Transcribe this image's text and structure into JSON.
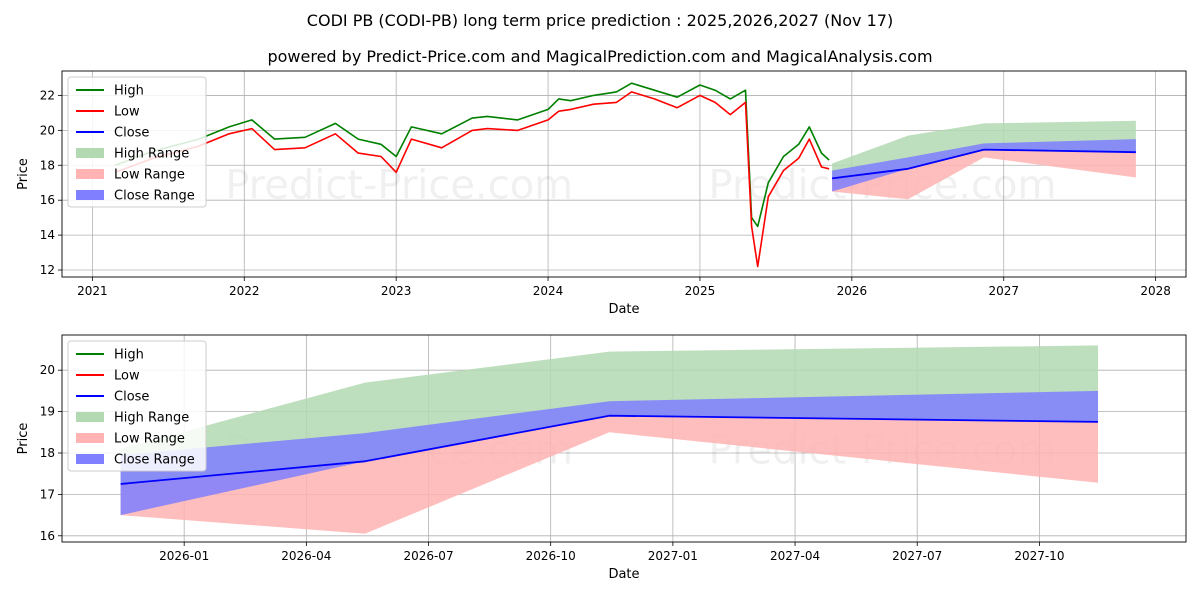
{
  "title_line1": "CODI PB (CODI-PB) long term price prediction : 2025,2026,2027 (Nov 17)",
  "title_line2": "powered by Predict-Price.com and MagicalPrediction.com and MagicalAnalysis.com",
  "watermark": "Predict-Price.com",
  "colors": {
    "high": "#008000",
    "low": "#ff0000",
    "close": "#0000ff",
    "high_range": "#b3d9b3",
    "low_range": "#ffb3b3",
    "close_range": "#7f7fff"
  },
  "legend": [
    "High",
    "Low",
    "Close",
    "High Range",
    "Low Range",
    "Close Range"
  ],
  "chart_data": [
    {
      "type": "line",
      "name": "history",
      "xlabel": "Date",
      "ylabel": "Price",
      "xlim": [
        2020.8,
        2028.2
      ],
      "ylim": [
        11.6,
        23.4
      ],
      "xticks": [
        2021,
        2022,
        2023,
        2024,
        2025,
        2026,
        2027,
        2028
      ],
      "xtick_labels": [
        "2021",
        "2022",
        "2023",
        "2024",
        "2025",
        "2026",
        "2027",
        "2028"
      ],
      "yticks": [
        12,
        14,
        16,
        18,
        20,
        22
      ],
      "ytick_labels": [
        "12",
        "14",
        "16",
        "18",
        "20",
        "22"
      ],
      "series": [
        {
          "name": "High",
          "x": [
            2021.15,
            2021.4,
            2021.7,
            2021.9,
            2022.05,
            2022.2,
            2022.4,
            2022.6,
            2022.75,
            2022.9,
            2023.0,
            2023.1,
            2023.3,
            2023.5,
            2023.6,
            2023.8,
            2024.0,
            2024.07,
            2024.15,
            2024.3,
            2024.45,
            2024.55,
            2024.7,
            2024.85,
            2025.0,
            2025.1,
            2025.2,
            2025.3,
            2025.34,
            2025.38,
            2025.45,
            2025.55,
            2025.65,
            2025.72,
            2025.8,
            2025.85
          ],
          "y": [
            18.0,
            18.8,
            19.5,
            20.2,
            20.6,
            19.5,
            19.6,
            20.4,
            19.5,
            19.2,
            18.5,
            20.2,
            19.8,
            20.7,
            20.8,
            20.6,
            21.2,
            21.8,
            21.7,
            22.0,
            22.2,
            22.7,
            22.3,
            21.9,
            22.6,
            22.3,
            21.8,
            22.3,
            15.0,
            14.5,
            17.0,
            18.5,
            19.2,
            20.2,
            18.7,
            18.3
          ]
        },
        {
          "name": "Low",
          "x": [
            2021.15,
            2021.4,
            2021.7,
            2021.9,
            2022.05,
            2022.2,
            2022.4,
            2022.6,
            2022.75,
            2022.9,
            2023.0,
            2023.1,
            2023.3,
            2023.5,
            2023.6,
            2023.8,
            2024.0,
            2024.07,
            2024.15,
            2024.3,
            2024.45,
            2024.55,
            2024.7,
            2024.85,
            2025.0,
            2025.1,
            2025.2,
            2025.3,
            2025.34,
            2025.38,
            2025.45,
            2025.55,
            2025.65,
            2025.72,
            2025.8,
            2025.85
          ],
          "y": [
            17.6,
            18.4,
            19.1,
            19.8,
            20.1,
            18.9,
            19.0,
            19.8,
            18.7,
            18.5,
            17.6,
            19.5,
            19.0,
            20.0,
            20.1,
            20.0,
            20.6,
            21.1,
            21.2,
            21.5,
            21.6,
            22.2,
            21.8,
            21.3,
            22.0,
            21.6,
            20.9,
            21.6,
            14.5,
            12.2,
            16.2,
            17.7,
            18.4,
            19.5,
            17.9,
            17.8
          ]
        },
        {
          "name": "Close",
          "x": [
            2025.87,
            2026.37,
            2026.87,
            2027.87
          ],
          "y": [
            17.25,
            17.8,
            18.9,
            18.75
          ]
        }
      ],
      "ranges": [
        {
          "name": "High Range",
          "x": [
            2025.87,
            2026.37,
            2026.87,
            2027.87
          ],
          "lower": [
            17.25,
            17.8,
            18.9,
            18.75
          ],
          "upper": [
            18.1,
            19.7,
            20.4,
            20.55
          ]
        },
        {
          "name": "Low Range",
          "x": [
            2025.87,
            2026.37,
            2026.87,
            2027.87
          ],
          "lower": [
            16.5,
            16.05,
            18.45,
            17.3
          ],
          "upper": [
            17.25,
            17.8,
            18.9,
            18.75
          ]
        },
        {
          "name": "Close Range",
          "x": [
            2025.87,
            2026.37,
            2026.87,
            2027.87
          ],
          "lower": [
            16.5,
            17.8,
            18.9,
            18.75
          ],
          "upper": [
            17.7,
            18.45,
            19.25,
            19.5
          ]
        }
      ]
    },
    {
      "type": "line",
      "name": "forecast",
      "xlabel": "Date",
      "ylabel": "Price",
      "xlim": [
        2025.75,
        2028.05
      ],
      "ylim": [
        15.85,
        20.85
      ],
      "xticks": [
        2026.0,
        2026.25,
        2026.5,
        2026.75,
        2027.0,
        2027.25,
        2027.5,
        2027.75
      ],
      "xtick_labels": [
        "2026-01",
        "2026-04",
        "2026-07",
        "2026-10",
        "2027-01",
        "2027-04",
        "2027-07",
        "2027-10"
      ],
      "yticks": [
        16,
        17,
        18,
        19,
        20
      ],
      "ytick_labels": [
        "16",
        "17",
        "18",
        "19",
        "20"
      ],
      "series": [
        {
          "name": "Close",
          "x": [
            2025.87,
            2026.37,
            2026.87,
            2027.87
          ],
          "y": [
            17.25,
            17.8,
            18.9,
            18.75
          ]
        }
      ],
      "ranges": [
        {
          "name": "High Range",
          "x": [
            2025.87,
            2026.37,
            2026.87,
            2027.87
          ],
          "lower": [
            17.25,
            17.8,
            18.9,
            18.75
          ],
          "upper": [
            18.1,
            19.7,
            20.45,
            20.6
          ]
        },
        {
          "name": "Low Range",
          "x": [
            2025.87,
            2026.37,
            2026.87,
            2027.87
          ],
          "lower": [
            16.5,
            16.05,
            18.5,
            17.28
          ],
          "upper": [
            17.25,
            17.8,
            18.9,
            18.75
          ]
        },
        {
          "name": "Close Range",
          "x": [
            2025.87,
            2026.37,
            2026.87,
            2027.87
          ],
          "lower": [
            16.5,
            17.8,
            18.9,
            18.75
          ],
          "upper": [
            17.95,
            18.48,
            19.25,
            19.5
          ]
        }
      ]
    }
  ]
}
